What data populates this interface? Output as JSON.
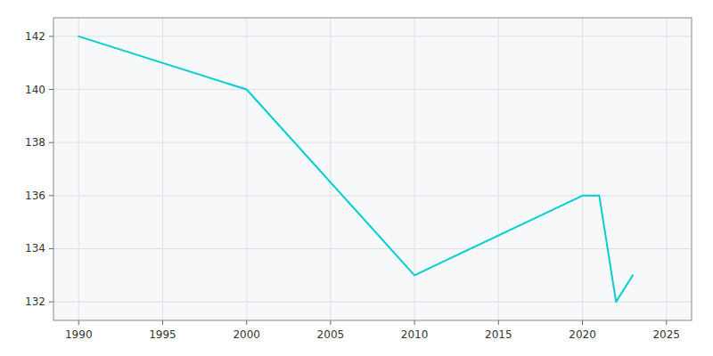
{
  "chart_data": {
    "type": "line",
    "x": [
      1990,
      2000,
      2010,
      2020,
      2021,
      2022,
      2023
    ],
    "values": [
      142,
      140,
      133,
      136,
      136,
      132,
      133
    ],
    "color": "#00CED1",
    "xlim": [
      1988.5,
      2026.5
    ],
    "ylim": [
      131.3,
      142.7
    ],
    "xticks": [
      1990,
      1995,
      2000,
      2005,
      2010,
      2015,
      2020,
      2025
    ],
    "yticks": [
      132,
      134,
      136,
      138,
      140,
      142
    ],
    "grid": true
  }
}
